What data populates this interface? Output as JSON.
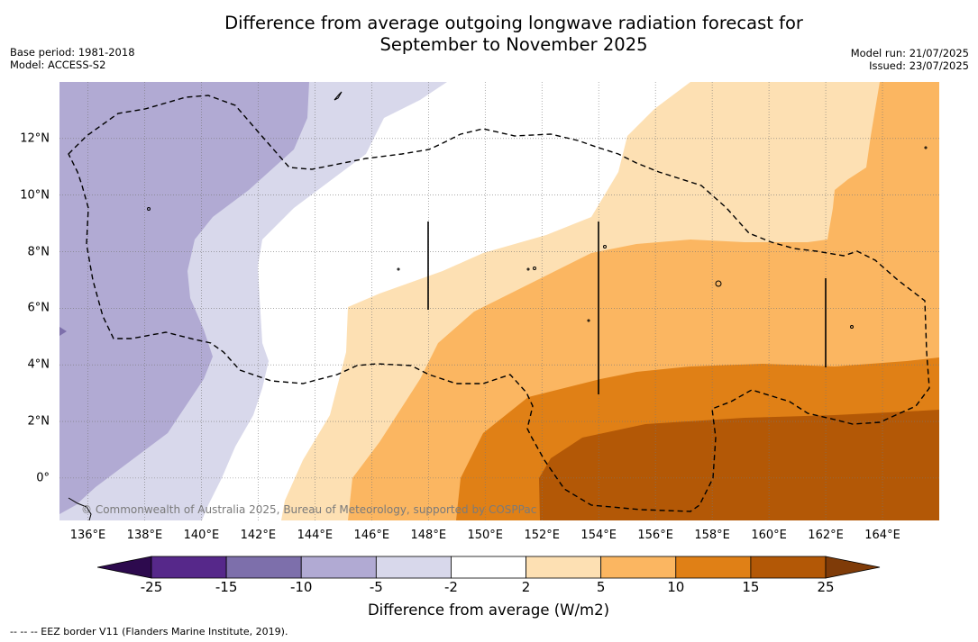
{
  "header": {
    "title_line1": "Difference from average outgoing longwave radiation forecast for",
    "title_line2": "September to November 2025",
    "base_period": "Base period: 1981-2018",
    "model": "Model: ACCESS-S2",
    "model_run": "Model run: 21/07/2025",
    "issued": "Issued: 23/07/2025"
  },
  "map": {
    "lon_range": [
      135,
      166
    ],
    "lat_range": [
      -1.5,
      14
    ],
    "lon_ticks": [
      "136°E",
      "138°E",
      "140°E",
      "142°E",
      "144°E",
      "146°E",
      "148°E",
      "150°E",
      "152°E",
      "154°E",
      "156°E",
      "158°E",
      "160°E",
      "162°E",
      "164°E"
    ],
    "lat_ticks": [
      "0°",
      "2°N",
      "4°N",
      "6°N",
      "8°N",
      "10°N",
      "12°N"
    ],
    "copyright": "© Commonwealth of Australia 2025, Bureau of Meteorology, supported by COSPPac",
    "grid": true
  },
  "colorbar": {
    "title": "Difference from average (W/m2)",
    "ticks": [
      "-25",
      "-15",
      "-10",
      "-5",
      "-2",
      "2",
      "5",
      "10",
      "15",
      "25"
    ],
    "colors": {
      "below_min": "#2d0a4e",
      "bins": [
        "#56288a",
        "#7d6fab",
        "#b1aad3",
        "#d8d8eb",
        "#ffffff",
        "#fde0b3",
        "#fbb661",
        "#e08016",
        "#b35806"
      ],
      "above_max": "#7f3b08"
    }
  },
  "legend": {
    "eez_text": "--  --  -- EEZ border V11 (Flanders Marine Institute, 2019)."
  }
}
